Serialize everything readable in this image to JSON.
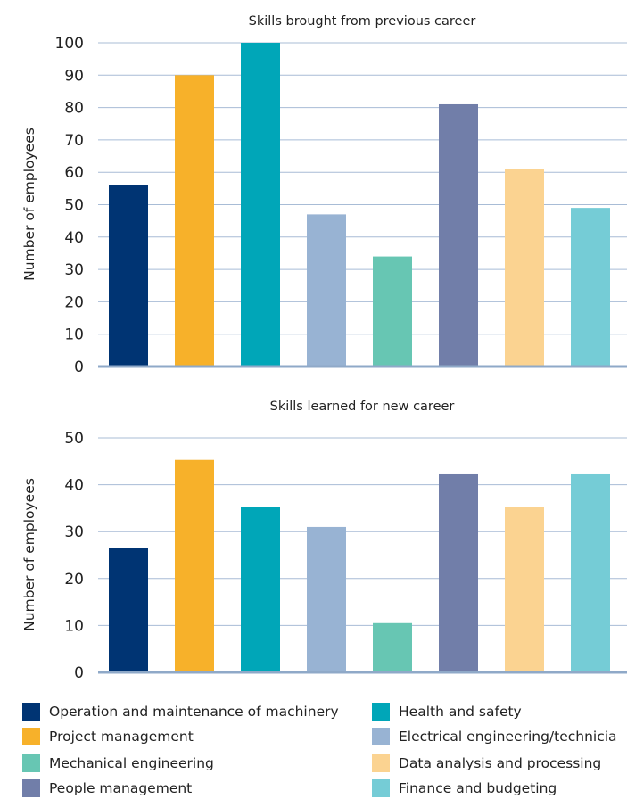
{
  "chart_data": [
    {
      "type": "bar",
      "title": "Skills brought from previous career",
      "ylabel": "Number of employees",
      "xlabel": "",
      "ylim": [
        0,
        100
      ],
      "yticks": [
        0,
        10,
        20,
        30,
        40,
        50,
        60,
        70,
        80,
        90,
        100
      ],
      "grid": true,
      "categories": [
        "Operation and maintenance of machinery",
        "Project management",
        "Health and safety",
        "Electrical engineering/technicia",
        "Mechanical engineering",
        "People management",
        "Data analysis and processing",
        "Finance and budgeting"
      ],
      "values": [
        56,
        90,
        100,
        47,
        34,
        81,
        61,
        49
      ]
    },
    {
      "type": "bar",
      "title": "Skills learned for new career",
      "ylabel": "Number of employees",
      "xlabel": "",
      "ylim": [
        0,
        50
      ],
      "yticks": [
        0,
        10,
        20,
        30,
        40,
        50
      ],
      "grid": true,
      "categories": [
        "Operation and maintenance of machinery",
        "Project management",
        "Health and safety",
        "Electrical engineering/technicia",
        "Mechanical engineering",
        "People management",
        "Data analysis and processing",
        "Finance and budgeting"
      ],
      "values": [
        26.5,
        45.3,
        35.2,
        31,
        10.5,
        42.4,
        35.2,
        42.4
      ]
    }
  ],
  "colors": [
    "#003473",
    "#f7b12a",
    "#00a6b8",
    "#98b3d3",
    "#67c6b3",
    "#717ea9",
    "#fbd391",
    "#75ccd6"
  ],
  "legend": {
    "placement": "bottom",
    "items": [
      {
        "label": "Operation and maintenance of machinery",
        "color": "#003473"
      },
      {
        "label": "Health and safety",
        "color": "#00a6b8"
      },
      {
        "label": "Project management",
        "color": "#f7b12a"
      },
      {
        "label": "Electrical engineering/technicia",
        "color": "#98b3d3"
      },
      {
        "label": "Mechanical engineering",
        "color": "#67c6b3"
      },
      {
        "label": "Data analysis and processing",
        "color": "#fbd391"
      },
      {
        "label": "People management",
        "color": "#717ea9"
      },
      {
        "label": "Finance and budgeting",
        "color": "#75ccd6"
      }
    ]
  }
}
